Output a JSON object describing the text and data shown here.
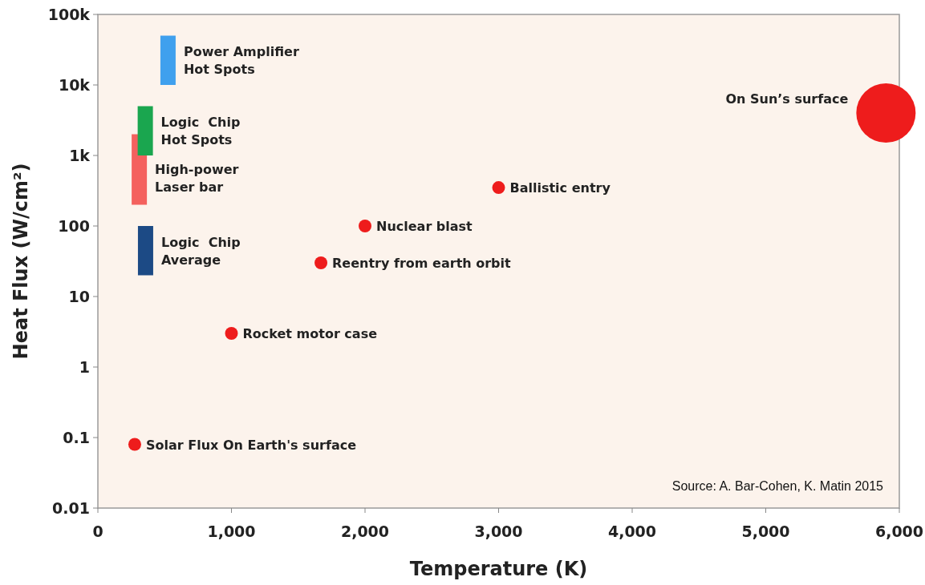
{
  "chart_data": {
    "type": "scatter",
    "xlabel": "Temperature (K)",
    "ylabel": "Heat Flux (W/cm²)",
    "log": "y",
    "xlim": [
      0,
      6000
    ],
    "ylim": [
      0.01,
      100000
    ],
    "xticks": [
      {
        "value": 0,
        "label": "0"
      },
      {
        "value": 1000,
        "label": "1,000"
      },
      {
        "value": 2000,
        "label": "2,000"
      },
      {
        "value": 3000,
        "label": "3,000"
      },
      {
        "value": 4000,
        "label": "4,000"
      },
      {
        "value": 5000,
        "label": "5,000"
      },
      {
        "value": 6000,
        "label": "6,000"
      }
    ],
    "yticks": [
      0.01,
      0.1,
      1,
      10,
      100,
      {
        "value": 1000,
        "label": "1k"
      },
      {
        "value": 10000,
        "label": "10k"
      },
      {
        "value": 100000,
        "label": "100k"
      }
    ],
    "grid": false,
    "series": [
      {
        "type": "bar",
        "name": "Power Amplifier\nHot Spots",
        "color": "#3fa0ee",
        "x": [
          525
        ],
        "base": [
          10000
        ],
        "values": [
          40000
        ]
      },
      {
        "type": "bar",
        "name": "High-power\nLaser bar",
        "color": "#f4615e",
        "x": [
          310
        ],
        "base": [
          200
        ],
        "values": [
          1800
        ]
      },
      {
        "type": "bar",
        "name": "Logic  Chip\nHot Spots",
        "color": "#1aa64f",
        "x": [
          355
        ],
        "base": [
          1000
        ],
        "values": [
          4000
        ]
      },
      {
        "type": "bar",
        "name": "Logic  Chip\nAverage",
        "color": "#1c4a85",
        "x": [
          357
        ],
        "base": [
          20
        ],
        "values": [
          80
        ]
      },
      {
        "name": "Solar Flux On Earth's surface",
        "color": "#ee1c1c",
        "x": [
          276
        ],
        "values": [
          0.08
        ]
      },
      {
        "name": "Rocket motor case",
        "color": "#ee1c1c",
        "x": [
          1000
        ],
        "values": [
          3
        ]
      },
      {
        "name": "Reentry from earth orbit",
        "color": "#ee1c1c",
        "x": [
          1670
        ],
        "values": [
          30
        ]
      },
      {
        "name": "Nuclear blast",
        "color": "#ee1c1c",
        "x": [
          2000
        ],
        "values": [
          100
        ]
      },
      {
        "name": "Ballistic entry",
        "color": "#ee1c1c",
        "x": [
          3000
        ],
        "values": [
          350
        ]
      },
      {
        "type": "bubble",
        "name": "On Sun’s surface",
        "color": "#ee1c1c",
        "x": [
          5900
        ],
        "values": [
          4000
        ],
        "sizes": [
          1
        ]
      }
    ],
    "annotations": [
      "Source: A. Bar-Cohen, K. Matin 2015"
    ]
  }
}
